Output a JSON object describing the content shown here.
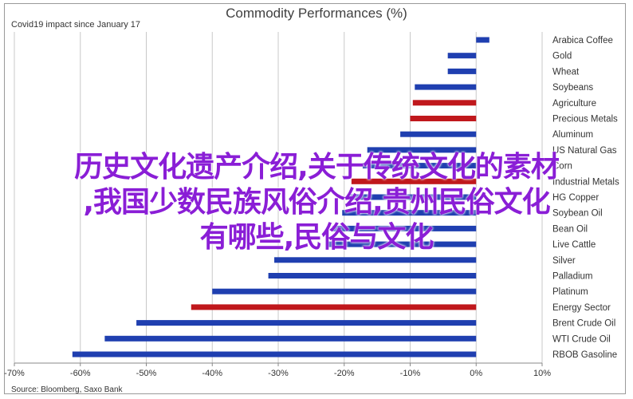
{
  "overlay": {
    "line1": "历史文化遗产介绍,关于传统文化的素材",
    "line2": ",我国少数民族风俗介绍,贵州民俗文化",
    "line3": "有哪些,民俗与文化"
  },
  "chart_data": {
    "type": "bar",
    "orientation": "horizontal",
    "title": "Commodity Performances (%)",
    "subtitle": "Covid19 impact since January 17",
    "source": "Source: Bloomberg, Saxo Bank",
    "xlim": [
      -70,
      10
    ],
    "x_ticks": [
      "-70%",
      "-60%",
      "-50%",
      "-40%",
      "-30%",
      "-20%",
      "-10%",
      "0%",
      "10%"
    ],
    "grid": "vertical",
    "colors": {
      "commodity": "#1f3fb0",
      "highlight": "#c0181c"
    },
    "categories": [
      "Arabica Coffee",
      "Gold",
      "Wheat",
      "Soybeans",
      "Agriculture",
      "Precious Metals",
      "Aluminum",
      "US Natural Gas",
      "Corn",
      "Industrial Metals",
      "HG Copper",
      "Soybean Oil",
      "Bean Oil",
      "Live Cattle",
      "Silver",
      "Palladium",
      "Platinum",
      "Energy Sector",
      "Brent Crude Oil",
      "WTI Crude Oil",
      "RBOB Gasoline"
    ],
    "values": [
      2,
      -4.3,
      -4.3,
      -9.3,
      -9.6,
      -10,
      -11.5,
      -16.5,
      -17.2,
      -18.9,
      -19.5,
      -20.3,
      -21.8,
      -22.5,
      -30.6,
      -31.5,
      -40,
      -43.2,
      -51.5,
      -56.3,
      -61.2
    ],
    "highlight": [
      false,
      false,
      false,
      false,
      true,
      true,
      false,
      false,
      false,
      true,
      false,
      false,
      false,
      false,
      false,
      false,
      false,
      true,
      false,
      false,
      false
    ]
  }
}
